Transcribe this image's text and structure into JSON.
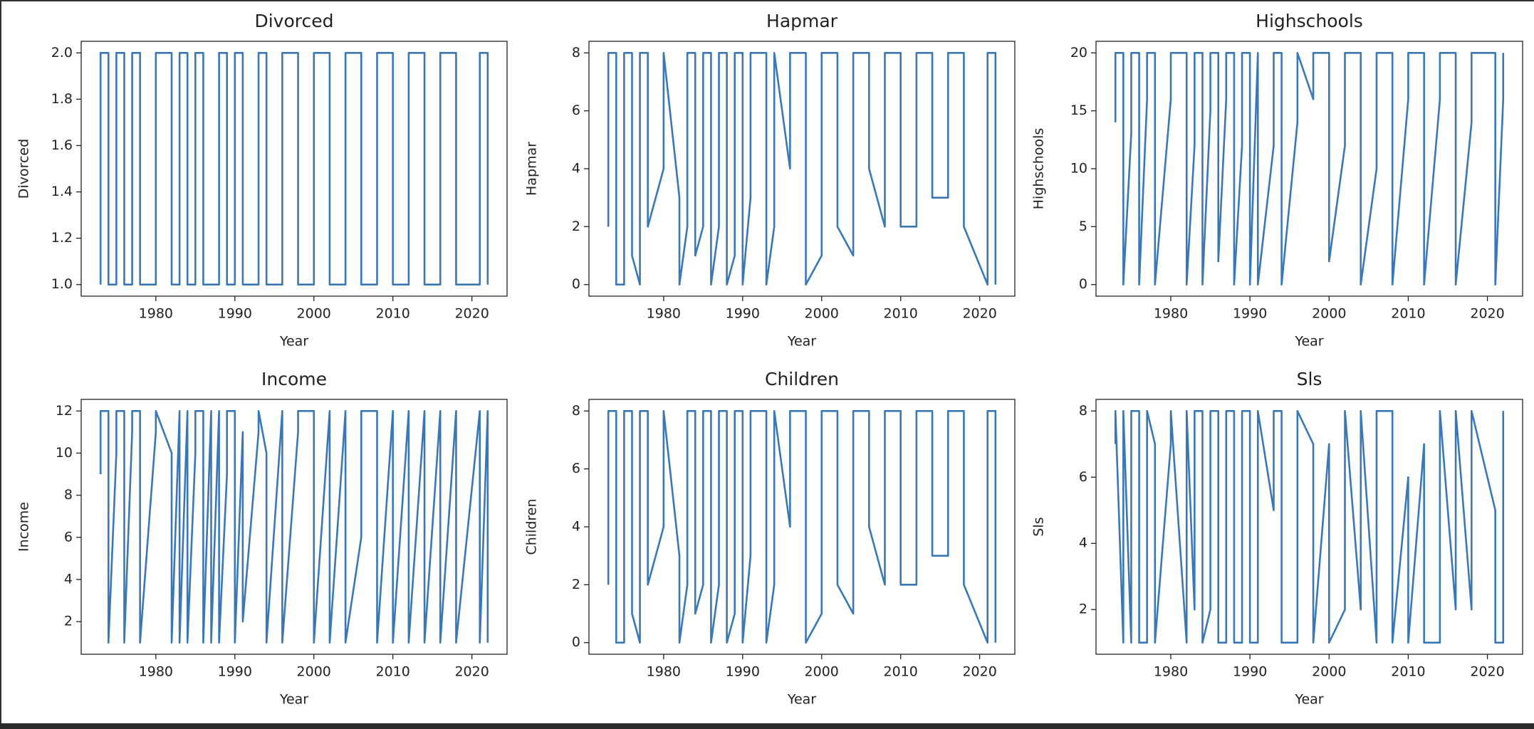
{
  "chart_data": [
    {
      "type": "line",
      "title": "Divorced",
      "x_label": "Year",
      "y_label": "Divorced",
      "color": "#3a78b5",
      "x": [
        1973,
        1973,
        1974,
        1974,
        1975,
        1975,
        1976,
        1976,
        1977,
        1977,
        1978,
        1978,
        1980,
        1980,
        1982,
        1982,
        1983,
        1983,
        1984,
        1984,
        1985,
        1985,
        1986,
        1986,
        1987,
        1987,
        1988,
        1988,
        1989,
        1989,
        1990,
        1990,
        1991,
        1991,
        1993,
        1993,
        1994,
        1994,
        1996,
        1996,
        1998,
        1998,
        2000,
        2000,
        2002,
        2002,
        2004,
        2004,
        2006,
        2006,
        2008,
        2008,
        2010,
        2010,
        2012,
        2012,
        2014,
        2014,
        2016,
        2016,
        2018,
        2018,
        2021,
        2021,
        2022,
        2022
      ],
      "values": [
        1,
        2,
        2,
        1,
        1,
        2,
        2,
        1,
        1,
        2,
        2,
        1,
        1,
        2,
        2,
        1,
        1,
        2,
        2,
        1,
        1,
        2,
        2,
        1,
        1,
        1,
        1,
        2,
        2,
        1,
        1,
        2,
        2,
        1,
        1,
        2,
        2,
        1,
        1,
        2,
        2,
        1,
        1,
        2,
        2,
        1,
        1,
        2,
        2,
        1,
        1,
        2,
        2,
        1,
        1,
        2,
        2,
        1,
        1,
        2,
        2,
        1,
        1,
        2,
        2,
        1
      ],
      "xlim": [
        1970.55,
        2024.45
      ],
      "xticks": [
        1980,
        1990,
        2000,
        2010,
        2020
      ],
      "ylim": [
        0.95,
        2.05
      ],
      "yticks": [
        {
          "value": 1,
          "label": "1.0"
        },
        {
          "value": 1.2,
          "label": "1.2"
        },
        {
          "value": 1.4,
          "label": "1.4"
        },
        {
          "value": 1.6,
          "label": "1.6"
        },
        {
          "value": 1.8,
          "label": "1.8"
        },
        {
          "value": 2,
          "label": "2.0"
        }
      ]
    },
    {
      "type": "line",
      "title": "Hapmar",
      "x_label": "Year",
      "y_label": "Hapmar",
      "color": "#3a78b5",
      "x": [
        1973,
        1973,
        1974,
        1974,
        1975,
        1975,
        1976,
        1976,
        1977,
        1977,
        1978,
        1978,
        1980,
        1980,
        1982,
        1982,
        1983,
        1983,
        1984,
        1984,
        1985,
        1985,
        1986,
        1986,
        1987,
        1987,
        1988,
        1988,
        1989,
        1989,
        1990,
        1990,
        1991,
        1991,
        1993,
        1993,
        1994,
        1994,
        1996,
        1996,
        1998,
        1998,
        2000,
        2000,
        2002,
        2002,
        2004,
        2004,
        2006,
        2006,
        2008,
        2008,
        2010,
        2010,
        2012,
        2012,
        2014,
        2014,
        2016,
        2016,
        2018,
        2018,
        2021,
        2021,
        2022,
        2022
      ],
      "values": [
        2,
        8,
        8,
        0,
        0,
        8,
        8,
        1,
        0,
        8,
        8,
        2,
        4,
        8,
        3,
        0,
        2,
        8,
        8,
        1,
        2,
        8,
        8,
        0,
        2,
        8,
        8,
        0,
        1,
        8,
        8,
        0,
        3,
        8,
        8,
        0,
        2,
        8,
        4,
        8,
        8,
        0,
        1,
        8,
        8,
        2,
        1,
        8,
        8,
        4,
        2,
        8,
        8,
        2,
        2,
        8,
        8,
        3,
        3,
        8,
        8,
        2,
        0,
        8,
        8,
        0
      ],
      "xlim": [
        1970.55,
        2024.45
      ],
      "xticks": [
        1980,
        1990,
        2000,
        2010,
        2020
      ],
      "ylim": [
        -0.4,
        8.4
      ],
      "yticks": [
        0,
        2,
        4,
        6,
        8
      ]
    },
    {
      "type": "line",
      "title": "Highschools",
      "x_label": "Year",
      "y_label": "Highschools",
      "color": "#3a78b5",
      "x": [
        1973,
        1973,
        1974,
        1974,
        1975,
        1975,
        1976,
        1976,
        1977,
        1977,
        1978,
        1978,
        1980,
        1980,
        1982,
        1982,
        1983,
        1983,
        1984,
        1984,
        1985,
        1985,
        1986,
        1986,
        1987,
        1987,
        1988,
        1988,
        1989,
        1989,
        1990,
        1990,
        1991,
        1991,
        1993,
        1993,
        1994,
        1994,
        1996,
        1996,
        1998,
        1998,
        2000,
        2000,
        2002,
        2002,
        2004,
        2004,
        2006,
        2006,
        2008,
        2008,
        2010,
        2010,
        2012,
        2012,
        2014,
        2014,
        2016,
        2016,
        2018,
        2018,
        2021,
        2021,
        2022,
        2022
      ],
      "values": [
        14,
        20,
        20,
        0,
        13,
        20,
        20,
        0,
        16,
        20,
        20,
        0,
        16,
        20,
        20,
        0,
        12,
        20,
        20,
        0,
        15,
        20,
        20,
        2,
        16,
        20,
        20,
        0,
        12,
        20,
        20,
        0,
        20,
        0,
        12,
        20,
        20,
        0,
        14,
        20,
        16,
        20,
        20,
        2,
        12,
        20,
        20,
        0,
        10,
        20,
        20,
        0,
        16,
        20,
        20,
        0,
        16,
        20,
        20,
        0,
        14,
        20,
        20,
        0,
        16,
        20
      ],
      "xlim": [
        1970.55,
        2024.45
      ],
      "xticks": [
        1980,
        1990,
        2000,
        2010,
        2020
      ],
      "ylim": [
        -1,
        21
      ],
      "yticks": [
        0,
        5,
        10,
        15,
        20
      ]
    },
    {
      "type": "line",
      "title": "Income",
      "x_label": "Year",
      "y_label": "Income",
      "color": "#3a78b5",
      "x": [
        1973,
        1973,
        1974,
        1974,
        1975,
        1975,
        1976,
        1976,
        1977,
        1977,
        1978,
        1978,
        1980,
        1980,
        1982,
        1982,
        1983,
        1983,
        1984,
        1984,
        1985,
        1985,
        1986,
        1986,
        1987,
        1987,
        1988,
        1988,
        1989,
        1989,
        1990,
        1990,
        1991,
        1991,
        1993,
        1993,
        1994,
        1994,
        1996,
        1996,
        1998,
        1998,
        2000,
        2000,
        2002,
        2002,
        2004,
        2004,
        2006,
        2006,
        2008,
        2008,
        2010,
        2010,
        2012,
        2012,
        2014,
        2014,
        2016,
        2016,
        2018,
        2018,
        2021,
        2021,
        2022,
        2022
      ],
      "values": [
        9,
        12,
        12,
        1,
        10,
        12,
        12,
        1,
        11,
        12,
        12,
        1,
        11,
        12,
        10,
        1,
        12,
        1,
        12,
        1,
        10,
        12,
        12,
        1,
        12,
        1,
        12,
        1,
        9,
        12,
        12,
        1,
        11,
        2,
        11,
        12,
        10,
        1,
        12,
        1,
        11,
        12,
        12,
        1,
        12,
        1,
        12,
        1,
        6,
        12,
        12,
        1,
        12,
        1,
        12,
        1,
        12,
        1,
        12,
        1,
        12,
        1,
        12,
        1,
        12,
        1
      ],
      "xlim": [
        1970.55,
        2024.45
      ],
      "xticks": [
        1980,
        1990,
        2000,
        2010,
        2020
      ],
      "ylim": [
        0.45,
        12.55
      ],
      "yticks": [
        2,
        4,
        6,
        8,
        10,
        12
      ]
    },
    {
      "type": "line",
      "title": "Children",
      "x_label": "Year",
      "y_label": "Children",
      "color": "#3a78b5",
      "x": [
        1973,
        1973,
        1974,
        1974,
        1975,
        1975,
        1976,
        1976,
        1977,
        1977,
        1978,
        1978,
        1980,
        1980,
        1982,
        1982,
        1983,
        1983,
        1984,
        1984,
        1985,
        1985,
        1986,
        1986,
        1987,
        1987,
        1988,
        1988,
        1989,
        1989,
        1990,
        1990,
        1991,
        1991,
        1993,
        1993,
        1994,
        1994,
        1996,
        1996,
        1998,
        1998,
        2000,
        2000,
        2002,
        2002,
        2004,
        2004,
        2006,
        2006,
        2008,
        2008,
        2010,
        2010,
        2012,
        2012,
        2014,
        2014,
        2016,
        2016,
        2018,
        2018,
        2021,
        2021,
        2022,
        2022
      ],
      "values": [
        2,
        8,
        8,
        0,
        0,
        8,
        8,
        1,
        0,
        8,
        8,
        2,
        4,
        8,
        3,
        0,
        2,
        8,
        8,
        1,
        2,
        8,
        8,
        0,
        2,
        8,
        8,
        0,
        1,
        8,
        8,
        0,
        3,
        8,
        8,
        0,
        2,
        8,
        4,
        8,
        8,
        0,
        1,
        8,
        8,
        2,
        1,
        8,
        8,
        4,
        2,
        8,
        8,
        2,
        2,
        8,
        8,
        3,
        3,
        8,
        8,
        2,
        0,
        8,
        8,
        0
      ],
      "xlim": [
        1970.55,
        2024.45
      ],
      "xticks": [
        1980,
        1990,
        2000,
        2010,
        2020
      ],
      "ylim": [
        -0.4,
        8.4
      ],
      "yticks": [
        0,
        2,
        4,
        6,
        8
      ]
    },
    {
      "type": "line",
      "title": "Sls",
      "x_label": "Year",
      "y_label": "Sls",
      "color": "#3a78b5",
      "x": [
        1973,
        1973,
        1974,
        1974,
        1975,
        1975,
        1976,
        1976,
        1977,
        1977,
        1978,
        1978,
        1980,
        1980,
        1982,
        1982,
        1983,
        1983,
        1984,
        1984,
        1985,
        1985,
        1986,
        1986,
        1987,
        1987,
        1988,
        1988,
        1989,
        1989,
        1990,
        1990,
        1991,
        1991,
        1993,
        1993,
        1994,
        1994,
        1996,
        1996,
        1998,
        1998,
        2000,
        2000,
        2002,
        2002,
        2004,
        2004,
        2006,
        2006,
        2008,
        2008,
        2010,
        2010,
        2012,
        2012,
        2014,
        2014,
        2016,
        2016,
        2018,
        2018,
        2021,
        2021,
        2022,
        2022
      ],
      "values": [
        7,
        8,
        1,
        8,
        1,
        8,
        8,
        1,
        1,
        8,
        7,
        1,
        7,
        8,
        1,
        8,
        2,
        8,
        8,
        1,
        2,
        8,
        8,
        1,
        1,
        8,
        8,
        1,
        1,
        8,
        8,
        1,
        1,
        8,
        5,
        8,
        8,
        1,
        1,
        8,
        7,
        1,
        7,
        1,
        2,
        8,
        2,
        8,
        1,
        8,
        8,
        1,
        6,
        1,
        7,
        1,
        1,
        8,
        2,
        8,
        2,
        8,
        5,
        1,
        1,
        8
      ],
      "xlim": [
        1970.55,
        2024.45
      ],
      "xticks": [
        1980,
        1990,
        2000,
        2010,
        2020
      ],
      "ylim": [
        0.65,
        8.35
      ],
      "yticks": [
        2,
        4,
        6,
        8
      ]
    }
  ]
}
